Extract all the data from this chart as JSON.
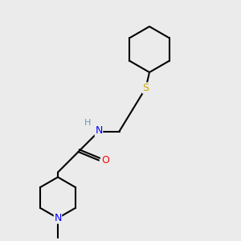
{
  "background_color": "#ebebeb",
  "bond_color": "#000000",
  "atom_colors": {
    "N": "#0000ff",
    "O": "#ff0000",
    "S": "#ccaa00",
    "H": "#6699bb"
  },
  "line_width": 1.5,
  "font_size": 8.5
}
